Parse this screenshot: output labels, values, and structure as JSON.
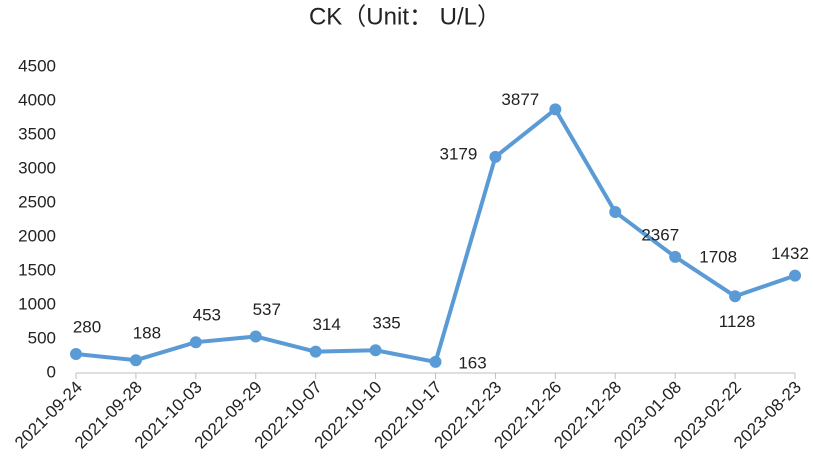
{
  "chart_data": {
    "type": "line",
    "title": "CK（Unit： U/L）",
    "categories": [
      "2021-09-24",
      "2021-09-28",
      "2021-10-03",
      "2022-09-29",
      "2022-10-07",
      "2022-10-10",
      "2022-10-17",
      "2022-12-23",
      "2022-12-26",
      "2022-12-28",
      "2023-01-08",
      "2023-02-22",
      "2023-08-23"
    ],
    "values": [
      280,
      188,
      453,
      537,
      314,
      335,
      163,
      3179,
      3877,
      2367,
      1708,
      1128,
      1432
    ],
    "color": "#5b9bd5",
    "ylim": [
      0,
      4500
    ],
    "yticks": [
      0,
      500,
      1000,
      1500,
      2000,
      2500,
      3000,
      3500,
      4000,
      4500
    ],
    "grid": false
  }
}
